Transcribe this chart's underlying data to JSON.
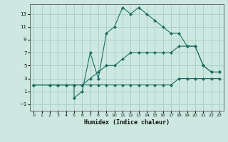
{
  "title": "",
  "xlabel": "Humidex (Indice chaleur)",
  "bg_color": "#cce8e0",
  "line_color": "#1e6e62",
  "grid_color": "#a0c8c0",
  "xlim": [
    -0.5,
    23.5
  ],
  "ylim": [
    -2.0,
    14.5
  ],
  "xticks": [
    0,
    1,
    2,
    3,
    4,
    5,
    6,
    7,
    8,
    9,
    10,
    11,
    12,
    13,
    14,
    15,
    16,
    17,
    18,
    19,
    20,
    21,
    22,
    23
  ],
  "yticks": [
    -1,
    1,
    3,
    5,
    7,
    9,
    11,
    13
  ],
  "line1_x": [
    0,
    2,
    3,
    4,
    5,
    6,
    7,
    8,
    9,
    10,
    11,
    12,
    13,
    14,
    15,
    16,
    17,
    18,
    19,
    20,
    21,
    22,
    23
  ],
  "line1_y": [
    2,
    2,
    2,
    2,
    2,
    2,
    2,
    2,
    2,
    2,
    2,
    2,
    2,
    2,
    2,
    2,
    2,
    3,
    3,
    3,
    3,
    3,
    3
  ],
  "line2_x": [
    0,
    2,
    3,
    4,
    5,
    5,
    6,
    7,
    8,
    9,
    10,
    11,
    12,
    13,
    14,
    15,
    16,
    17,
    18,
    19,
    20,
    21,
    22,
    23
  ],
  "line2_y": [
    2,
    2,
    2,
    2,
    2,
    0,
    1,
    7,
    3,
    10,
    11,
    14,
    13,
    14,
    13,
    12,
    11,
    10,
    10,
    8,
    8,
    5,
    4,
    4
  ],
  "line3_x": [
    0,
    2,
    3,
    4,
    5,
    6,
    7,
    8,
    9,
    10,
    11,
    12,
    13,
    14,
    15,
    16,
    17,
    18,
    19,
    20,
    21,
    22,
    23
  ],
  "line3_y": [
    2,
    2,
    2,
    2,
    2,
    2,
    3,
    4,
    5,
    5,
    6,
    7,
    7,
    7,
    7,
    7,
    7,
    8,
    8,
    8,
    5,
    4,
    4
  ]
}
